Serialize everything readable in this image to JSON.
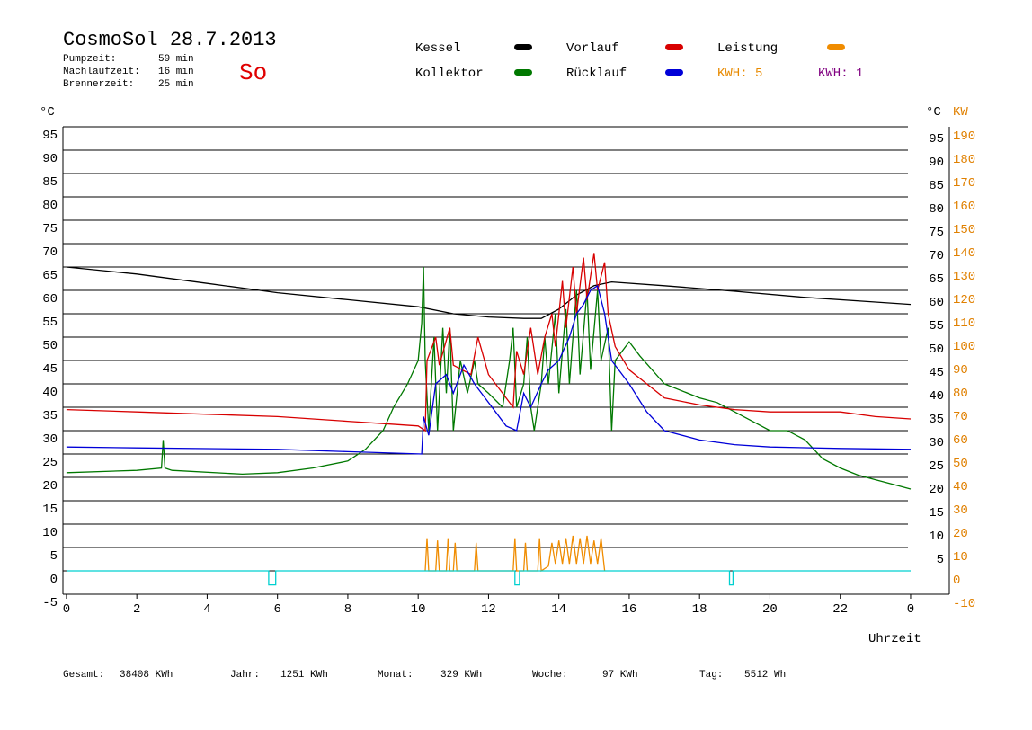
{
  "header": {
    "title": "CosmoSol 28.7.2013",
    "day": "So",
    "stats": [
      {
        "label": "Pumpzeit:",
        "value": "59 min"
      },
      {
        "label": "Nachlaufzeit:",
        "value": "16 min"
      },
      {
        "label": "Brennerzeit:",
        "value": "25 min"
      }
    ]
  },
  "legend_extra": [
    {
      "text": "KWH: 5",
      "color": "#e88a00"
    },
    {
      "text": "KWH: 1",
      "color": "#800080"
    }
  ],
  "footer": [
    {
      "label": "Gesamt:",
      "value": "38408 KWh"
    },
    {
      "label": "Jahr:",
      "value": "1251 KWh"
    },
    {
      "label": "Monat:",
      "value": "329 KWh"
    },
    {
      "label": "Woche:",
      "value": "97 KWh"
    },
    {
      "label": "Tag:",
      "value": "5512 Wh"
    }
  ],
  "chart_data": {
    "type": "line",
    "y_unit": "°C",
    "y2_unit": "KW",
    "xlabel": "Uhrzeit",
    "grid": true,
    "xlim": [
      -0.1,
      25.1
    ],
    "xticks": [
      0,
      2,
      4,
      6,
      8,
      10,
      12,
      14,
      16,
      18,
      20,
      22,
      {
        "value": 24,
        "label": "0"
      }
    ],
    "ylim": [
      -5,
      95
    ],
    "yticks": [
      -5,
      0,
      5,
      10,
      15,
      20,
      25,
      30,
      35,
      40,
      45,
      50,
      55,
      60,
      65,
      70,
      75,
      80,
      85,
      90,
      95
    ],
    "yticks_right": [
      5,
      10,
      15,
      20,
      25,
      30,
      35,
      40,
      45,
      50,
      55,
      60,
      65,
      70,
      75,
      80,
      85,
      90,
      95
    ],
    "y2lim": [
      -10,
      190
    ],
    "y2ticks": [
      -10,
      0,
      10,
      20,
      30,
      40,
      50,
      60,
      70,
      80,
      90,
      100,
      110,
      120,
      130,
      140,
      150,
      160,
      170,
      180,
      190
    ],
    "series": [
      {
        "name": "Kessel",
        "color": "#000000",
        "x": [
          0,
          2,
          4,
          5.5,
          6,
          8,
          10,
          11,
          12,
          13,
          13.5,
          14,
          14.5,
          15,
          15.5,
          17,
          19,
          21,
          23,
          24
        ],
        "values": [
          65,
          63.5,
          61.5,
          60,
          59.5,
          58,
          56.5,
          55,
          54.3,
          54,
          54,
          56,
          59,
          61,
          61.8,
          61,
          59.8,
          58.5,
          57.5,
          57
        ]
      },
      {
        "name": "Kollektor",
        "color": "#007800",
        "x": [
          0,
          2,
          2.7,
          2.75,
          2.8,
          3,
          5,
          6,
          7,
          8,
          8.5,
          9,
          9.3,
          9.7,
          10,
          10.1,
          10.15,
          10.2,
          10.3,
          10.45,
          10.55,
          10.7,
          10.8,
          10.9,
          11,
          11.2,
          11.4,
          11.6,
          11.7,
          12,
          12.4,
          12.6,
          12.7,
          12.8,
          13,
          13.1,
          13.2,
          13.3,
          13.5,
          13.6,
          13.7,
          13.9,
          14,
          14.2,
          14.3,
          14.5,
          14.6,
          14.8,
          14.9,
          15.1,
          15.2,
          15.4,
          15.5,
          15.6,
          16,
          16.3,
          17,
          18,
          18.5,
          19,
          19.5,
          20,
          20.5,
          21,
          21.5,
          22,
          22.5,
          23,
          23.5,
          24
        ],
        "values": [
          21,
          21.5,
          22,
          28,
          22,
          21.5,
          20.7,
          21,
          22,
          23.5,
          26,
          30,
          35,
          40,
          45,
          53,
          65,
          45,
          30,
          50,
          30,
          52,
          38,
          52,
          30,
          45,
          38,
          45,
          40,
          38,
          35,
          45,
          52,
          35,
          40,
          50,
          35,
          30,
          40,
          50,
          40,
          55,
          38,
          56,
          40,
          60,
          42,
          60,
          43,
          60,
          45,
          52,
          30,
          45,
          49,
          46,
          40,
          37,
          36,
          34,
          32,
          30,
          30,
          28,
          24,
          22,
          20.5,
          19.5,
          18.5,
          17.5
        ]
      },
      {
        "name": "Vorlauf",
        "color": "#d80000",
        "x": [
          0,
          2,
          4,
          6,
          8,
          9,
          10,
          10.2,
          10.25,
          10.5,
          10.6,
          10.9,
          11,
          11.5,
          11.7,
          12,
          12.5,
          12.7,
          12.8,
          13,
          13.2,
          13.4,
          13.6,
          13.8,
          13.9,
          14.1,
          14.2,
          14.4,
          14.5,
          14.7,
          14.8,
          15,
          15.1,
          15.3,
          15.4,
          15.6,
          16,
          16.5,
          17,
          18,
          19,
          20,
          22,
          23,
          24
        ],
        "values": [
          34.5,
          34,
          33.5,
          33,
          32,
          31.5,
          31,
          30,
          45,
          50,
          44,
          52,
          44,
          42,
          50,
          42,
          37,
          35,
          47,
          42,
          52,
          42,
          50,
          55,
          48,
          62,
          52,
          65,
          55,
          67,
          58,
          68,
          60,
          66,
          55,
          48,
          43,
          40,
          37,
          35.5,
          34.5,
          34,
          34,
          33,
          32.5
        ]
      },
      {
        "name": "Rücklauf",
        "color": "#0000d8",
        "x": [
          0,
          2,
          6,
          8,
          10.1,
          10.15,
          10.3,
          10.5,
          10.8,
          11,
          11.3,
          11.6,
          11.8,
          12.2,
          12.5,
          12.8,
          13,
          13.2,
          13.5,
          13.7,
          14,
          14.3,
          14.5,
          14.7,
          14.9,
          15.1,
          15.3,
          15.5,
          16,
          16.5,
          17,
          18,
          19,
          20,
          22,
          24
        ],
        "values": [
          26.5,
          26.3,
          26,
          25.5,
          25,
          33,
          29,
          40,
          42,
          38,
          44,
          40,
          38,
          34,
          31,
          30,
          38,
          35,
          40,
          43,
          45,
          50,
          55,
          57,
          60,
          61,
          55,
          45,
          40,
          34,
          30,
          28,
          27,
          26.5,
          26.2,
          26
        ]
      },
      {
        "name": "Leistung",
        "color": "#f08c00",
        "axis": "y2",
        "x": [
          10.2,
          10.25,
          10.3,
          10.5,
          10.55,
          10.6,
          10.8,
          10.85,
          10.9,
          11,
          11.05,
          11.1,
          11.6,
          11.65,
          11.7,
          12.7,
          12.75,
          12.8,
          13,
          13.05,
          13.1,
          13.4,
          13.45,
          13.5,
          13.7,
          13.8,
          13.9,
          14,
          14.1,
          14.2,
          14.3,
          14.4,
          14.5,
          14.6,
          14.7,
          14.8,
          14.9,
          15,
          15.1,
          15.2,
          15.3
        ],
        "values": [
          0,
          14,
          0,
          0,
          13,
          0,
          0,
          14,
          0,
          0,
          12,
          0,
          0,
          12,
          0,
          0,
          14,
          0,
          0,
          12,
          0,
          0,
          14,
          0,
          2,
          12,
          3,
          13,
          3,
          14,
          3,
          15,
          3,
          14,
          3,
          15,
          3,
          13,
          3,
          14,
          0
        ]
      },
      {
        "color": "#00d0d0",
        "x": [
          0,
          5.75,
          5.75,
          5.95,
          5.95,
          12.75,
          12.75,
          12.88,
          12.88,
          18.85,
          18.85,
          18.95,
          18.95,
          24
        ],
        "values": [
          0,
          0,
          -3,
          -3,
          0,
          0,
          -3,
          -3,
          0,
          0,
          -3,
          -3,
          0,
          0
        ]
      }
    ]
  }
}
